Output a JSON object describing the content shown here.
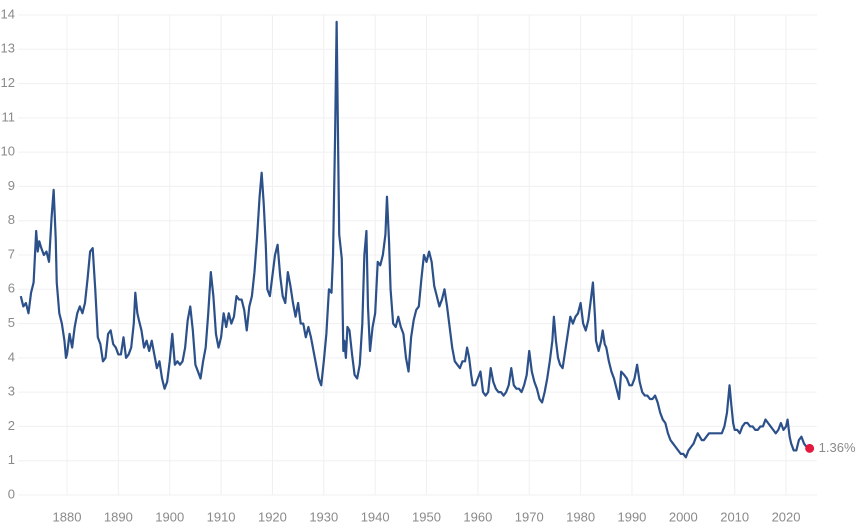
{
  "chart_data": {
    "type": "line",
    "x": [
      1871.0,
      1871.5,
      1872,
      1872.5,
      1873,
      1873.5,
      1874,
      1874.3,
      1874.6,
      1875,
      1875.5,
      1876,
      1876.5,
      1877,
      1877.4,
      1877.8,
      1878,
      1878.5,
      1879,
      1879.5,
      1879.8,
      1880,
      1880.5,
      1881,
      1881.5,
      1882,
      1882.5,
      1883,
      1883.5,
      1884,
      1884.5,
      1885,
      1885.5,
      1886,
      1886.5,
      1887,
      1887.5,
      1888,
      1888.5,
      1889,
      1889.5,
      1890,
      1890.5,
      1891,
      1891.5,
      1892,
      1892.5,
      1893,
      1893.3,
      1893.7,
      1894,
      1894.5,
      1895,
      1895.5,
      1896,
      1896.5,
      1897,
      1897.5,
      1898,
      1898.5,
      1899,
      1899.5,
      1900,
      1900.5,
      1901,
      1901.5,
      1902,
      1902.5,
      1903,
      1903.5,
      1904,
      1904.5,
      1905,
      1905.5,
      1906,
      1906.5,
      1907,
      1907.5,
      1908,
      1908.5,
      1909,
      1909.5,
      1910,
      1910.5,
      1911,
      1911.5,
      1912,
      1912.5,
      1913,
      1913.5,
      1914,
      1914.5,
      1915,
      1915.5,
      1916,
      1916.5,
      1917,
      1917.5,
      1917.9,
      1918.3,
      1918.7,
      1919,
      1919.5,
      1920,
      1920.5,
      1921,
      1921.5,
      1922,
      1922.5,
      1923,
      1923.5,
      1924,
      1924.5,
      1925,
      1925.5,
      1926,
      1926.5,
      1927,
      1927.5,
      1928,
      1928.5,
      1929,
      1929.5,
      1930,
      1930.5,
      1931,
      1931.5,
      1931.8,
      1932.2,
      1932.5,
      1932.8,
      1933,
      1933.5,
      1933.8,
      1934,
      1934.3,
      1934.6,
      1935,
      1935.5,
      1936,
      1936.5,
      1937,
      1937.5,
      1937.9,
      1938.3,
      1938.6,
      1939,
      1939.5,
      1940,
      1940.5,
      1941,
      1941.5,
      1942,
      1942.3,
      1942.7,
      1943,
      1943.5,
      1944,
      1944.5,
      1945,
      1945.5,
      1946,
      1946.5,
      1947,
      1947.5,
      1948,
      1948.5,
      1949,
      1949.5,
      1950,
      1950.5,
      1951,
      1951.5,
      1952,
      1952.5,
      1953,
      1953.5,
      1954,
      1954.5,
      1955,
      1955.5,
      1956,
      1956.5,
      1957,
      1957.5,
      1957.9,
      1958.3,
      1958.7,
      1959,
      1959.5,
      1960,
      1960.5,
      1961,
      1961.5,
      1962,
      1962.5,
      1963,
      1963.5,
      1964,
      1964.5,
      1965,
      1965.5,
      1966,
      1966.5,
      1967,
      1967.5,
      1968,
      1968.5,
      1969,
      1969.5,
      1970,
      1970.5,
      1971,
      1971.5,
      1972,
      1972.5,
      1973,
      1973.5,
      1974,
      1974.5,
      1974.8,
      1975.2,
      1975.6,
      1976,
      1976.5,
      1977,
      1977.5,
      1978,
      1978.5,
      1979,
      1979.5,
      1980,
      1980.5,
      1981,
      1981.5,
      1982,
      1982.4,
      1982.8,
      1983,
      1983.5,
      1984,
      1984.3,
      1984.7,
      1985,
      1985.5,
      1986,
      1986.5,
      1987,
      1987.5,
      1987.9,
      1988.5,
      1989,
      1989.5,
      1990,
      1990.5,
      1991,
      1991.5,
      1992,
      1992.5,
      1993,
      1993.5,
      1994,
      1994.5,
      1995,
      1995.5,
      1996,
      1996.5,
      1997,
      1997.5,
      1998,
      1998.5,
      1999,
      1999.5,
      2000,
      2000.5,
      2001,
      2001.5,
      2002,
      2002.5,
      2002.8,
      2003.2,
      2003.6,
      2004,
      2004.5,
      2005,
      2005.5,
      2006,
      2006.5,
      2007,
      2007.5,
      2008,
      2008.5,
      2009,
      2009.3,
      2009.7,
      2010,
      2010.5,
      2011,
      2011.5,
      2012,
      2012.5,
      2013,
      2013.5,
      2014,
      2014.5,
      2015,
      2015.5,
      2016,
      2016.5,
      2017,
      2017.5,
      2018,
      2018.5,
      2019,
      2019.5,
      2020,
      2020.3,
      2020.7,
      2021,
      2021.5,
      2022,
      2022.5,
      2023,
      2023.5,
      2024,
      2024.6
    ],
    "series": [
      {
        "color": "#2c5089",
        "values": [
          5.8,
          5.5,
          5.6,
          5.3,
          5.9,
          6.2,
          7.7,
          7.1,
          7.4,
          7.2,
          7.0,
          7.1,
          6.8,
          8.1,
          8.9,
          7.5,
          6.2,
          5.3,
          5.0,
          4.5,
          4.0,
          4.1,
          4.7,
          4.3,
          4.9,
          5.3,
          5.5,
          5.3,
          5.6,
          6.3,
          7.1,
          7.2,
          6.0,
          4.6,
          4.4,
          3.9,
          4.0,
          4.7,
          4.8,
          4.4,
          4.3,
          4.1,
          4.1,
          4.6,
          4.0,
          4.1,
          4.3,
          5.0,
          5.9,
          5.3,
          5.1,
          4.8,
          4.3,
          4.5,
          4.2,
          4.5,
          4.1,
          3.7,
          3.9,
          3.4,
          3.1,
          3.3,
          3.9,
          4.7,
          3.8,
          3.9,
          3.8,
          3.9,
          4.3,
          5.1,
          5.5,
          4.8,
          3.8,
          3.6,
          3.4,
          3.9,
          4.3,
          5.3,
          6.5,
          5.8,
          4.7,
          4.3,
          4.6,
          5.3,
          4.9,
          5.3,
          5.0,
          5.2,
          5.8,
          5.7,
          5.7,
          5.4,
          4.8,
          5.5,
          5.8,
          6.5,
          7.5,
          8.7,
          9.4,
          8.5,
          7.3,
          6.0,
          5.8,
          6.4,
          7.0,
          7.3,
          6.4,
          5.8,
          5.6,
          6.5,
          6.1,
          5.6,
          5.2,
          5.6,
          5.0,
          5.0,
          4.6,
          4.9,
          4.6,
          4.2,
          3.8,
          3.4,
          3.2,
          3.9,
          4.7,
          6.0,
          5.9,
          7.0,
          10.5,
          13.8,
          10.0,
          7.6,
          6.9,
          4.2,
          4.5,
          4.0,
          4.9,
          4.8,
          4.1,
          3.5,
          3.4,
          3.8,
          5.0,
          7.0,
          7.7,
          5.5,
          4.2,
          4.9,
          5.3,
          6.8,
          6.7,
          7.0,
          7.6,
          8.7,
          7.4,
          6.0,
          5.0,
          4.9,
          5.2,
          4.9,
          4.7,
          4.0,
          3.6,
          4.6,
          5.1,
          5.4,
          5.5,
          6.3,
          7.0,
          6.8,
          7.1,
          6.8,
          6.1,
          5.8,
          5.5,
          5.7,
          6.0,
          5.5,
          4.9,
          4.3,
          3.9,
          3.8,
          3.7,
          3.9,
          3.9,
          4.3,
          4.0,
          3.5,
          3.2,
          3.2,
          3.4,
          3.6,
          3.0,
          2.9,
          3.0,
          3.7,
          3.3,
          3.1,
          3.0,
          3.0,
          2.9,
          3.0,
          3.2,
          3.7,
          3.2,
          3.1,
          3.1,
          3.0,
          3.2,
          3.5,
          4.2,
          3.6,
          3.3,
          3.1,
          2.8,
          2.7,
          3.0,
          3.4,
          3.9,
          4.5,
          5.2,
          4.5,
          4.0,
          3.8,
          3.7,
          4.2,
          4.7,
          5.2,
          5.0,
          5.2,
          5.3,
          5.6,
          5.0,
          4.8,
          5.1,
          5.7,
          6.2,
          5.2,
          4.5,
          4.2,
          4.5,
          4.8,
          4.4,
          4.3,
          3.9,
          3.6,
          3.4,
          3.1,
          2.8,
          3.6,
          3.5,
          3.4,
          3.2,
          3.2,
          3.4,
          3.8,
          3.3,
          3.0,
          2.9,
          2.9,
          2.8,
          2.8,
          2.9,
          2.7,
          2.4,
          2.2,
          2.1,
          1.8,
          1.6,
          1.5,
          1.4,
          1.3,
          1.2,
          1.2,
          1.1,
          1.3,
          1.4,
          1.5,
          1.7,
          1.8,
          1.7,
          1.6,
          1.6,
          1.7,
          1.8,
          1.8,
          1.8,
          1.8,
          1.8,
          1.8,
          2.0,
          2.4,
          3.2,
          2.7,
          2.1,
          1.9,
          1.9,
          1.8,
          2.0,
          2.1,
          2.1,
          2.0,
          2.0,
          1.9,
          1.9,
          2.0,
          2.0,
          2.2,
          2.1,
          2.0,
          1.9,
          1.8,
          1.9,
          2.1,
          1.9,
          2.0,
          2.2,
          1.7,
          1.5,
          1.3,
          1.3,
          1.6,
          1.7,
          1.5,
          1.4,
          1.36
        ]
      }
    ],
    "last_point": {
      "x": 2024.6,
      "value": 1.36,
      "label": "1.36%",
      "color": "#e3193d"
    },
    "xlim": [
      1870.5,
      2026
    ],
    "xticks": [
      1880,
      1890,
      1900,
      1910,
      1920,
      1930,
      1940,
      1950,
      1960,
      1970,
      1980,
      1990,
      2000,
      2010,
      2020
    ],
    "ylim": [
      0,
      14
    ],
    "yticks": [
      0,
      1,
      2,
      3,
      4,
      5,
      6,
      7,
      8,
      9,
      10,
      11,
      12,
      13,
      14
    ],
    "grid": true
  }
}
